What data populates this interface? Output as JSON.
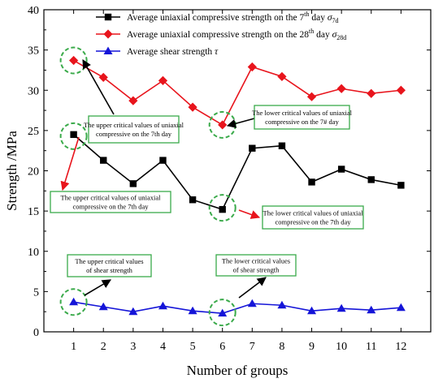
{
  "chart_data": {
    "type": "line",
    "xlabel": "Number of groups",
    "ylabel": "Strength /MPa",
    "x": [
      1,
      2,
      3,
      4,
      5,
      6,
      7,
      8,
      9,
      10,
      11,
      12
    ],
    "xlim": [
      0,
      13
    ],
    "ylim": [
      0,
      40
    ],
    "yticks": [
      0,
      5,
      10,
      15,
      20,
      25,
      30,
      35,
      40
    ],
    "grid": false,
    "legend_position": "top-right",
    "series": [
      {
        "name": "Average uniaxial compressive strength on the 7th day σ7d",
        "name_main": "Average uniaxial compressive strength on the 7",
        "name_sup": "th",
        "name_day": " day ",
        "name_symbol": "σ",
        "name_sub": "7d",
        "color": "#000000",
        "marker": "square",
        "values": [
          24.5,
          21.3,
          18.4,
          21.3,
          16.4,
          15.2,
          22.8,
          23.1,
          18.6,
          20.2,
          18.9,
          18.2
        ]
      },
      {
        "name": "Average uniaxial compressive strength on the 28th day σ28d",
        "name_main": "Average uniaxial compressive strength on the 28",
        "name_sup": "th",
        "name_day": " day ",
        "name_symbol": "σ",
        "name_sub": "28d",
        "color": "#e8141c",
        "marker": "diamond",
        "values": [
          33.7,
          31.6,
          28.7,
          31.2,
          27.9,
          25.7,
          32.9,
          31.7,
          29.2,
          30.2,
          29.6,
          30.0
        ]
      },
      {
        "name": "Average shear strength τ",
        "name_main": "Average shear strength ",
        "name_sup": "",
        "name_day": "",
        "name_symbol": "τ",
        "name_sub": "",
        "color": "#1515d8",
        "marker": "triangle",
        "values": [
          3.7,
          3.1,
          2.5,
          3.2,
          2.6,
          2.3,
          3.5,
          3.3,
          2.6,
          2.9,
          2.7,
          3.0
        ]
      }
    ],
    "annotations": [
      {
        "id": "red-upper",
        "lines": [
          "The upper critical values of uniaxial",
          "compressive on the 7th day"
        ],
        "highlight_x": 1,
        "highlight_y": 33.7,
        "arrow_color": "#000000"
      },
      {
        "id": "red-lower",
        "lines": [
          "The lower critical values of uniaxial",
          "compressive on the 7# day"
        ],
        "highlight_x": 6,
        "highlight_y": 25.7,
        "arrow_color": "#000000"
      },
      {
        "id": "black-upper",
        "lines": [
          "The upper critical values of uniaxial",
          "compressive on the 7th day"
        ],
        "highlight_x": 1,
        "highlight_y": 24.3,
        "arrow_color": "#e8141c"
      },
      {
        "id": "black-lower",
        "lines": [
          "The lower critical values of uniaxial",
          "compressive on the 7th day"
        ],
        "highlight_x": 6,
        "highlight_y": 15.4,
        "arrow_color": "#e8141c"
      },
      {
        "id": "shear-upper",
        "lines": [
          "The upper critical values",
          "of shear strength"
        ],
        "highlight_x": 1,
        "highlight_y": 3.7,
        "arrow_color": "#000000"
      },
      {
        "id": "shear-lower",
        "lines": [
          "The lower critical values",
          "of shear strength"
        ],
        "highlight_x": 6,
        "highlight_y": 2.4,
        "arrow_color": "#000000"
      }
    ],
    "highlight_color": "#3aaa4a"
  }
}
